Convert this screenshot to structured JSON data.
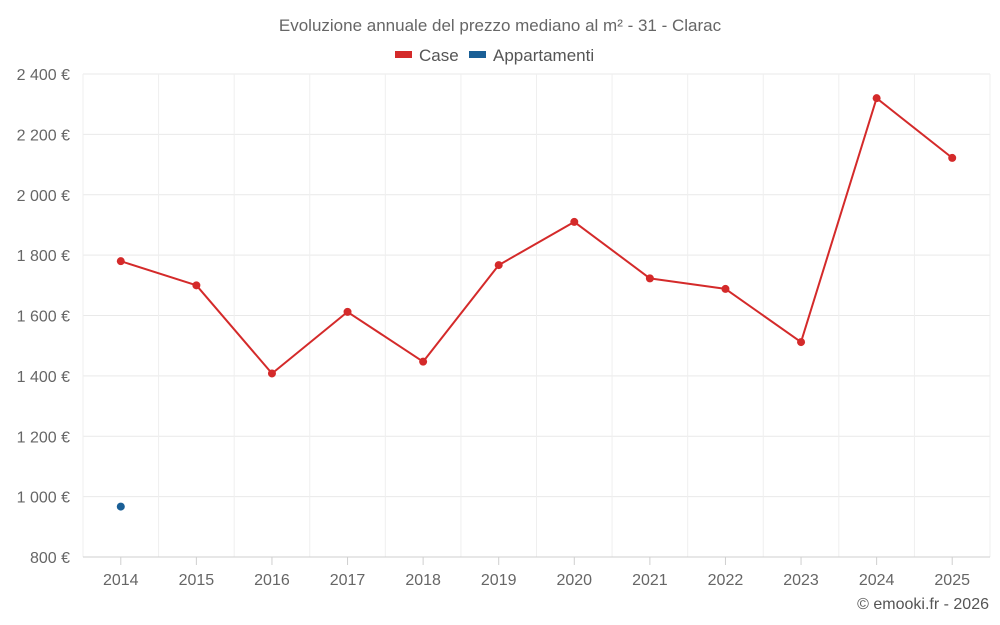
{
  "chart_data": {
    "type": "line",
    "title": "Evoluzione annuale del prezzo mediano al m² - 31 - Clarac",
    "categories": [
      "2014",
      "2015",
      "2016",
      "2017",
      "2018",
      "2019",
      "2020",
      "2021",
      "2022",
      "2023",
      "2024",
      "2025"
    ],
    "y_ticks": [
      800,
      1000,
      1200,
      1400,
      1600,
      1800,
      2000,
      2200,
      2400
    ],
    "y_tick_labels": [
      "800 €",
      "1 000 €",
      "1 200 €",
      "1 400 €",
      "1 600 €",
      "1 800 €",
      "2 000 €",
      "2 200 €",
      "2 400 €"
    ],
    "ylim": [
      800,
      2400
    ],
    "grid": true,
    "legend_position": "top-center",
    "series": [
      {
        "name": "Case",
        "color": "#d42a2a",
        "values": [
          1780,
          1700,
          1408,
          1612,
          1447,
          1767,
          1910,
          1723,
          1688,
          1512,
          2320,
          2122
        ]
      },
      {
        "name": "Appartamenti",
        "color": "#1a5f96",
        "values": [
          967,
          null,
          null,
          null,
          null,
          null,
          null,
          null,
          null,
          null,
          null,
          null
        ]
      }
    ]
  },
  "legend": {
    "items": [
      {
        "label": "Case",
        "color": "#d42a2a"
      },
      {
        "label": "Appartamenti",
        "color": "#1a5f96"
      }
    ]
  },
  "credit": "© emooki.fr - 2026"
}
